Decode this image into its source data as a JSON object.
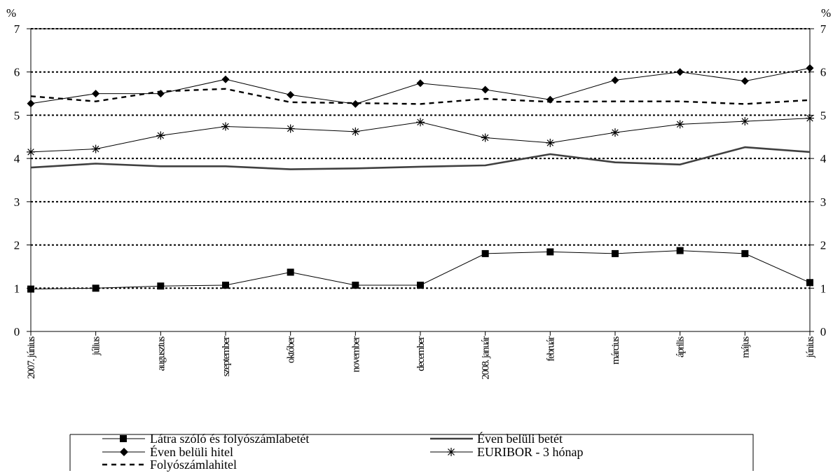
{
  "chart_data": {
    "type": "line",
    "y_unit_left": "%",
    "y_unit_right": "%",
    "ylim": [
      0,
      7
    ],
    "yticks": [
      "0",
      "1",
      "2",
      "3",
      "4",
      "5",
      "6",
      "7"
    ],
    "grid": "dotted horizontal at 1, 2, 3, 4, 5, 6, 7",
    "categories": [
      "2007. június",
      "július",
      "augusztus",
      "szeptember",
      "október",
      "november",
      "december",
      "2008. január",
      "február",
      "március",
      "április",
      "május",
      "június"
    ],
    "series": [
      {
        "name": "Látra szóló és folyószámlabetét",
        "marker": "square",
        "style": "thin-solid",
        "values": [
          0.98,
          1.0,
          1.05,
          1.07,
          1.37,
          1.07,
          1.07,
          1.8,
          1.84,
          1.8,
          1.87,
          1.8,
          1.13
        ]
      },
      {
        "name": "Éven belüli betét",
        "marker": "none",
        "style": "thick-solid",
        "values": [
          3.79,
          3.88,
          3.82,
          3.82,
          3.75,
          3.77,
          3.81,
          3.84,
          4.1,
          3.91,
          3.86,
          4.26,
          4.15
        ]
      },
      {
        "name": "Éven belüli hitel",
        "marker": "diamond",
        "style": "thin-solid",
        "values": [
          5.27,
          5.5,
          5.5,
          5.83,
          5.47,
          5.26,
          5.74,
          5.59,
          5.36,
          5.81,
          6.0,
          5.79,
          6.09
        ]
      },
      {
        "name": "EURIBOR - 3 hónap",
        "marker": "asterisk",
        "style": "thin-solid",
        "values": [
          4.15,
          4.22,
          4.53,
          4.74,
          4.69,
          4.62,
          4.84,
          4.48,
          4.36,
          4.6,
          4.79,
          4.86,
          4.93
        ]
      },
      {
        "name": "Folyószámlahitel",
        "marker": "none",
        "style": "dashed",
        "values": [
          5.44,
          5.32,
          5.55,
          5.61,
          5.3,
          5.28,
          5.26,
          5.38,
          5.31,
          5.32,
          5.32,
          5.26,
          5.35
        ]
      }
    ],
    "legend_position": "bottom"
  }
}
